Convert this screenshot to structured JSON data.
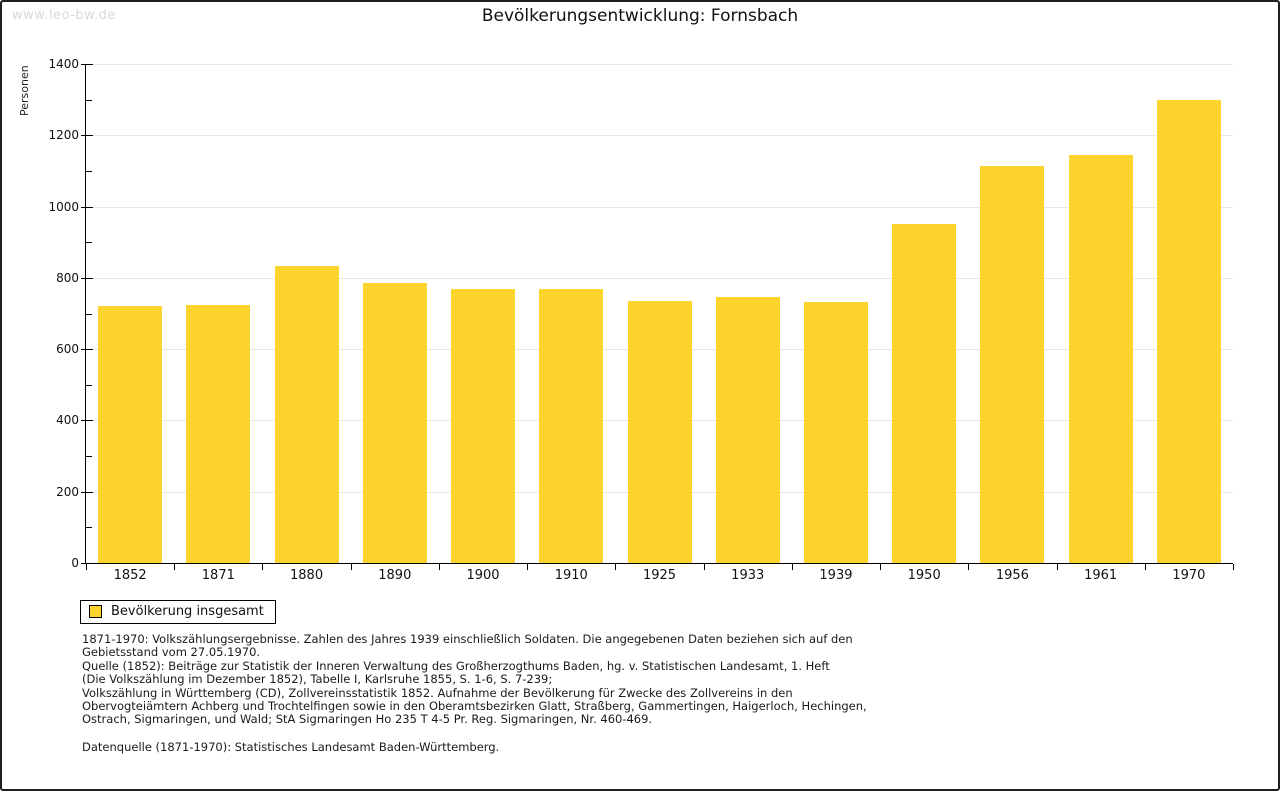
{
  "watermark": "www.leo-bw.de",
  "title": "Bevölkerungsentwicklung: Fornsbach",
  "chart_data": {
    "type": "bar",
    "title": "Bevölkerungsentwicklung: Fornsbach",
    "categories": [
      "1852",
      "1871",
      "1880",
      "1890",
      "1900",
      "1910",
      "1925",
      "1933",
      "1939",
      "1950",
      "1956",
      "1961",
      "1970"
    ],
    "values": [
      720,
      725,
      832,
      787,
      768,
      768,
      736,
      745,
      733,
      950,
      1113,
      1144,
      1300
    ],
    "xlabel": "",
    "ylabel": "Personen",
    "ylim": [
      0,
      1400
    ],
    "ytick_step": 200,
    "y_minor_step": 100,
    "grid": true,
    "legend_position": "bottom-left",
    "bar_color": "#FDD32E",
    "grid_color": "#e7e7e7",
    "legend": {
      "label": "Bevölkerung insgesamt",
      "swatch_color": "#FDD32E"
    }
  },
  "footnotes": {
    "lines": [
      "1871-1970: Volkszählungsergebnisse. Zahlen des Jahres 1939 einschließlich Soldaten. Die angegebenen Daten beziehen sich auf den",
      "Gebietsstand vom 27.05.1970.",
      "Quelle (1852): Beiträge zur Statistik der Inneren Verwaltung des Großherzogthums Baden, hg. v. Statistischen Landesamt, 1. Heft",
      "(Die Volkszählung im Dezember 1852), Tabelle I, Karlsruhe 1855, S. 1-6, S. 7-239;",
      "Volkszählung in Württemberg (CD), Zollvereinsstatistik 1852. Aufnahme der Bevölkerung für Zwecke des Zollvereins in den",
      "Obervogteiämtern Achberg und Trochtelfingen sowie in den Oberamtsbezirken Glatt, Straßberg, Gammertingen, Haigerloch, Hechingen,",
      "Ostrach, Sigmaringen, und Wald; StA Sigmaringen Ho 235 T 4-5 Pr. Reg. Sigmaringen, Nr. 460-469."
    ],
    "datasource": "Datenquelle (1871-1970): Statistisches Landesamt Baden-Württemberg."
  }
}
